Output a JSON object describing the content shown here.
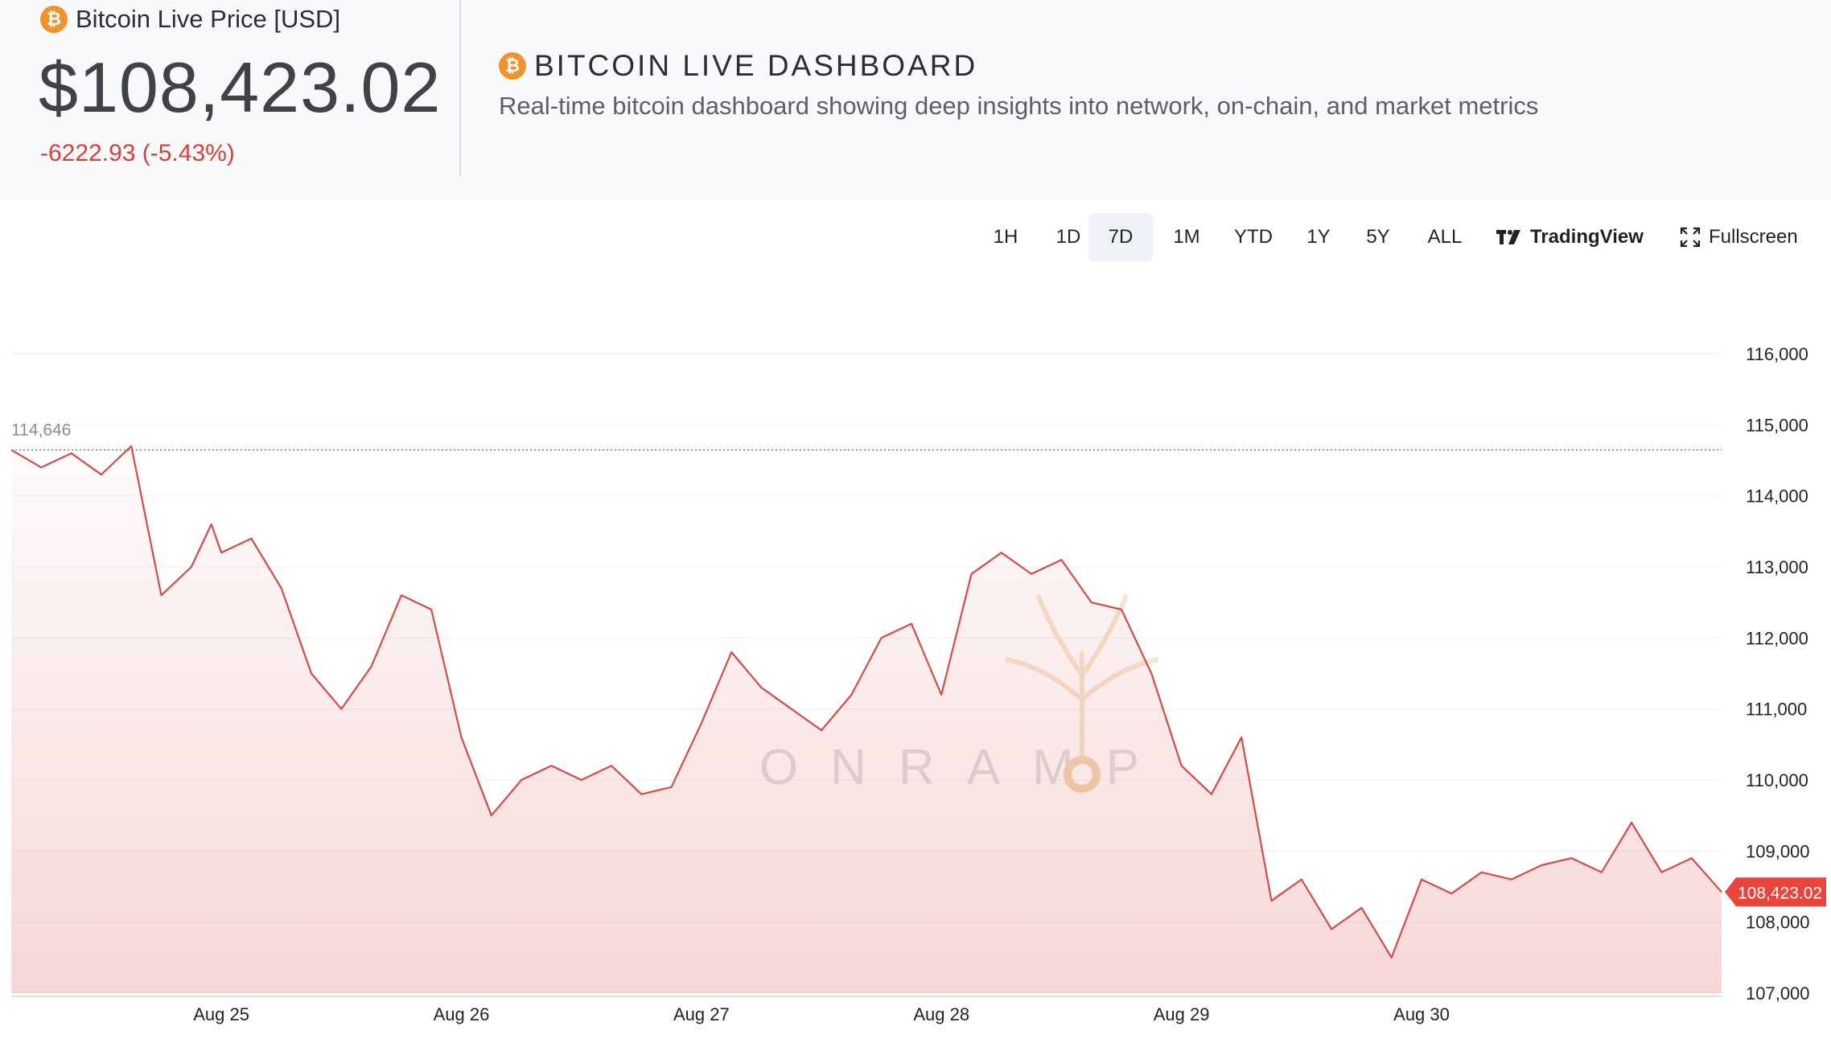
{
  "header": {
    "price_label": "Bitcoin Live Price [USD]",
    "price": "$108,423.02",
    "change": "-6222.93 (-5.43%)",
    "title": "BITCOIN LIVE DASHBOARD",
    "subtitle": "Real-time bitcoin dashboard showing deep insights into network, on-chain, and market metrics",
    "coin_icon": "bitcoin-icon",
    "accent_color": "#f2922c",
    "negative_color": "#d9403c"
  },
  "toolbar": {
    "ranges": [
      "1H",
      "1D",
      "7D",
      "1M",
      "YTD",
      "1Y",
      "5Y",
      "ALL"
    ],
    "active_range": "7D",
    "tradingview_label": "TradingView",
    "fullscreen_label": "Fullscreen"
  },
  "watermark": "ONRAMP",
  "chart_data": {
    "type": "area",
    "title": "",
    "xlabel": "",
    "ylabel": "",
    "x_ticks": [
      "Aug 25",
      "Aug 26",
      "Aug 27",
      "Aug 28",
      "Aug 29",
      "Aug 30"
    ],
    "x_domain": [
      "Aug 24 03:00",
      "Aug 31 06:00"
    ],
    "y_ticks": [
      107000,
      108000,
      109000,
      110000,
      111000,
      112000,
      113000,
      114000,
      115000,
      116000
    ],
    "y_tick_labels": [
      "107,000",
      "108,000",
      "109,000",
      "110,000",
      "111,000",
      "112,000",
      "113,000",
      "114,000",
      "115,000",
      "116,000"
    ],
    "ylim": [
      107000,
      116000
    ],
    "axis_side": "right",
    "grid": true,
    "line_color": "#d64b48",
    "start_value": 114646,
    "start_label": "114,646",
    "last_value": 108423.02,
    "last_label": "108,423.02",
    "series": [
      {
        "x": [
          "Aug 24 03:00",
          "Aug 24 06:00",
          "Aug 24 09:00",
          "Aug 24 12:00",
          "Aug 24 15:00",
          "Aug 24 18:00",
          "Aug 24 21:00",
          "Aug 24 23:00",
          "Aug 25 00:00",
          "Aug 25 03:00",
          "Aug 25 06:00",
          "Aug 25 09:00",
          "Aug 25 12:00",
          "Aug 25 15:00",
          "Aug 25 18:00",
          "Aug 25 21:00",
          "Aug 26 00:00",
          "Aug 26 03:00",
          "Aug 26 06:00",
          "Aug 26 09:00",
          "Aug 26 12:00",
          "Aug 26 15:00",
          "Aug 26 18:00",
          "Aug 26 21:00",
          "Aug 27 00:00",
          "Aug 27 03:00",
          "Aug 27 06:00",
          "Aug 27 09:00",
          "Aug 27 12:00",
          "Aug 27 15:00",
          "Aug 27 18:00",
          "Aug 27 21:00",
          "Aug 28 00:00",
          "Aug 28 03:00",
          "Aug 28 06:00",
          "Aug 28 09:00",
          "Aug 28 12:00",
          "Aug 28 15:00",
          "Aug 28 18:00",
          "Aug 28 21:00",
          "Aug 29 00:00",
          "Aug 29 03:00",
          "Aug 29 06:00",
          "Aug 29 09:00",
          "Aug 29 12:00",
          "Aug 29 15:00",
          "Aug 29 18:00",
          "Aug 29 21:00",
          "Aug 30 00:00",
          "Aug 30 03:00",
          "Aug 30 06:00",
          "Aug 30 09:00",
          "Aug 30 12:00",
          "Aug 30 15:00",
          "Aug 30 18:00",
          "Aug 30 21:00",
          "Aug 31 00:00",
          "Aug 31 03:00",
          "Aug 31 06:00"
        ],
        "values": [
          114646,
          114400,
          114600,
          114300,
          114700,
          112600,
          113000,
          113600,
          113200,
          113400,
          112700,
          111500,
          111000,
          111600,
          112600,
          112400,
          110600,
          109500,
          110000,
          110200,
          110000,
          110200,
          109800,
          109900,
          110800,
          111800,
          111300,
          111000,
          110700,
          111200,
          112000,
          112200,
          111200,
          112900,
          113200,
          112900,
          113100,
          112500,
          112400,
          111500,
          110200,
          109800,
          110600,
          108300,
          108600,
          107900,
          108200,
          107500,
          108600,
          108400,
          108700,
          108600,
          108800,
          108900,
          108700,
          109400,
          108700,
          108900,
          108423.02
        ]
      }
    ]
  }
}
